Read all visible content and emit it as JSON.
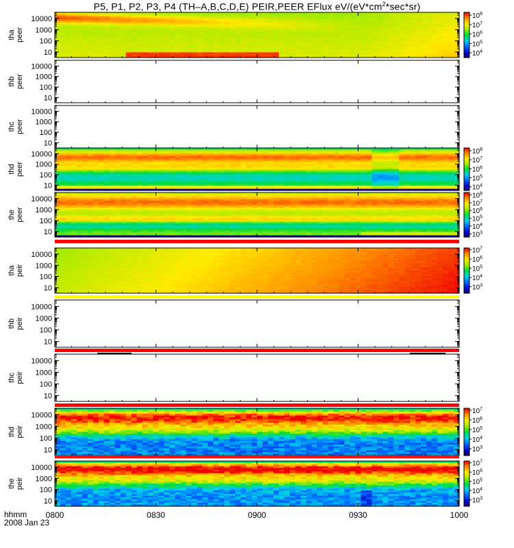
{
  "title": {
    "prefix": "P5, P1, P2, P3, P4 (TH–A,B,C,D,E) PEIR,PEER EFlux eV/(eV*cm",
    "sup1": "2",
    "suffix": "*sec*sr)"
  },
  "footer": {
    "time_label": "hhmm",
    "date_label": "2008 Jan 23"
  },
  "colors": {
    "frame": "#000000",
    "flag_red": "#ff0000",
    "flag_yellow": "#ffff00"
  },
  "chart_data": {
    "type": "heatmap",
    "x_ticks": [
      "0800",
      "0830",
      "0900",
      "0930",
      "1000"
    ],
    "x_range": [
      "0800",
      "1000"
    ],
    "y_scale": "log",
    "y_ticks": [
      "10",
      "100",
      "1000",
      "10000"
    ],
    "panels": [
      {
        "id": "tha-peer",
        "ylabel": [
          "tha",
          "peer"
        ],
        "has_data": true,
        "colorbar": [
          {
            "base": "10",
            "exp": "8"
          },
          {
            "base": "10",
            "exp": "7"
          },
          {
            "base": "10",
            "exp": "6"
          },
          {
            "base": "10",
            "exp": "5"
          },
          {
            "base": "10",
            "exp": "4"
          }
        ],
        "clim_log10": [
          3.5,
          8.3
        ]
      },
      {
        "id": "thb-peer",
        "ylabel": [
          "thb",
          "peer"
        ],
        "has_data": false,
        "colorbar": []
      },
      {
        "id": "thc-peer",
        "ylabel": [
          "thc",
          "peer"
        ],
        "has_data": false,
        "colorbar": []
      },
      {
        "id": "thd-peer",
        "ylabel": [
          "thd",
          "peer"
        ],
        "has_data": true,
        "colorbar": [
          {
            "base": "10",
            "exp": "8"
          },
          {
            "base": "10",
            "exp": "7"
          },
          {
            "base": "10",
            "exp": "6"
          },
          {
            "base": "10",
            "exp": "5"
          },
          {
            "base": "10",
            "exp": "4"
          }
        ],
        "clim_log10": [
          3.6,
          8.3
        ]
      },
      {
        "id": "the-peer",
        "ylabel": [
          "the",
          "peer"
        ],
        "has_data": true,
        "colorbar": [
          {
            "base": "10",
            "exp": "8"
          },
          {
            "base": "10",
            "exp": "7"
          },
          {
            "base": "10",
            "exp": "6"
          },
          {
            "base": "10",
            "exp": "5"
          },
          {
            "base": "10",
            "exp": "4"
          },
          {
            "base": "10",
            "exp": "3"
          }
        ],
        "clim_log10": [
          2.6,
          8.3
        ]
      },
      {
        "id": "tha-peir",
        "ylabel": [
          "tha",
          "peir"
        ],
        "has_data": true,
        "colorbar": [
          {
            "base": "10",
            "exp": "7"
          },
          {
            "base": "10",
            "exp": "6"
          },
          {
            "base": "10",
            "exp": "5"
          },
          {
            "base": "10",
            "exp": "4"
          },
          {
            "base": "10",
            "exp": "3"
          }
        ],
        "clim_log10": [
          2.3,
          7.2
        ]
      },
      {
        "id": "thb-peir",
        "ylabel": [
          "thb",
          "peir"
        ],
        "has_data": false,
        "colorbar": []
      },
      {
        "id": "thc-peir",
        "ylabel": [
          "thc",
          "peir"
        ],
        "has_data": false,
        "colorbar": []
      },
      {
        "id": "thd-peir",
        "ylabel": [
          "thd",
          "peir"
        ],
        "has_data": true,
        "colorbar": [
          {
            "base": "10",
            "exp": "7"
          },
          {
            "base": "10",
            "exp": "6"
          },
          {
            "base": "10",
            "exp": "5"
          },
          {
            "base": "10",
            "exp": "4"
          },
          {
            "base": "10",
            "exp": "3"
          }
        ],
        "clim_log10": [
          2.3,
          7.2
        ]
      },
      {
        "id": "the-peir",
        "ylabel": [
          "the",
          "peir"
        ],
        "has_data": true,
        "colorbar": [
          {
            "base": "10",
            "exp": "7"
          },
          {
            "base": "10",
            "exp": "6"
          },
          {
            "base": "10",
            "exp": "5"
          },
          {
            "base": "10",
            "exp": "4"
          },
          {
            "base": "10",
            "exp": "3"
          }
        ],
        "clim_log10": [
          2.3,
          7.2
        ]
      }
    ]
  }
}
